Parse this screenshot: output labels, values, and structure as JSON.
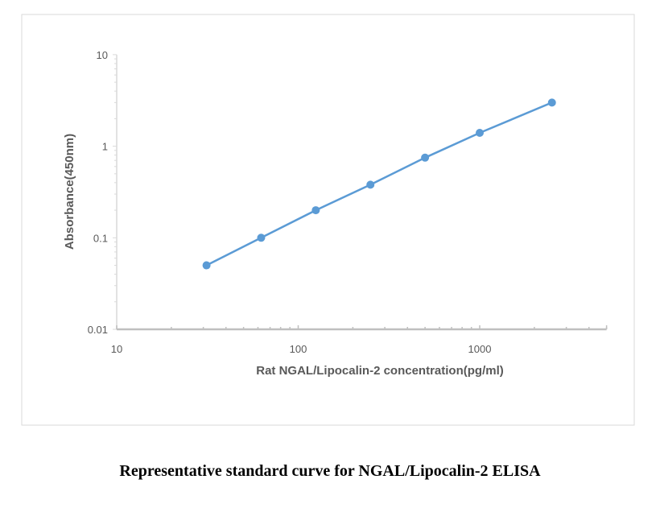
{
  "chart_data": {
    "type": "line",
    "title": "",
    "xlabel": "Rat NGAL/Lipocalin-2 concentration(pg/ml)",
    "ylabel": "Absorbance(450nm)",
    "x_scale": "log",
    "y_scale": "log",
    "xlim": [
      10,
      5000
    ],
    "ylim": [
      0.01,
      10
    ],
    "x_ticks": [
      10,
      100,
      1000
    ],
    "x_tick_labels": [
      "10",
      "100",
      "1000"
    ],
    "y_ticks": [
      0.01,
      0.1,
      1,
      10
    ],
    "y_tick_labels": [
      "0.01",
      "0.1",
      "1",
      "10"
    ],
    "grid": false,
    "series": [
      {
        "x": [
          31.25,
          62.5,
          125,
          250,
          500,
          1000,
          2500
        ],
        "y": [
          0.05,
          0.1,
          0.2,
          0.38,
          0.75,
          1.4,
          3.0
        ],
        "color": "#5B9BD5",
        "markers": true
      }
    ]
  },
  "caption": "Representative standard curve for NGAL/Lipocalin-2 ELISA"
}
